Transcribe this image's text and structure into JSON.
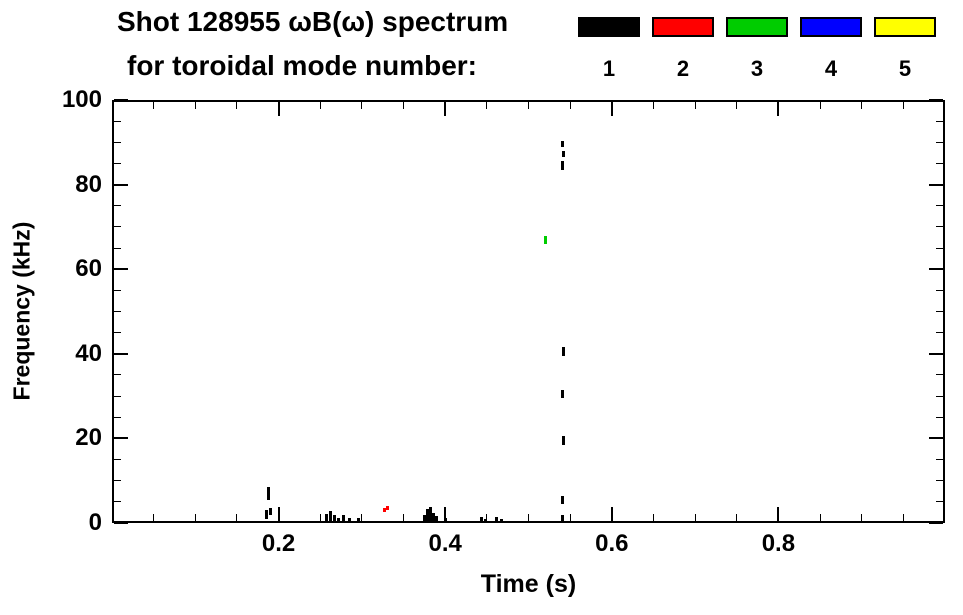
{
  "chart_data": {
    "type": "scatter",
    "title": "Shot 128955 ωB(ω) spectrum",
    "subtitle": "for toroidal mode number:",
    "xlabel": "Time (s)",
    "ylabel": "Frequency (kHz)",
    "xlim": [
      0.0,
      1.0
    ],
    "ylim": [
      0,
      100
    ],
    "xticks": [
      0.2,
      0.4,
      0.6,
      0.8
    ],
    "x_minor_step": 0.05,
    "x_tick_decimals": 1,
    "yticks": [
      0,
      20,
      40,
      60,
      80,
      100
    ],
    "y_minor_step": 5,
    "grid": false,
    "legend_position": "top-right",
    "legend": [
      {
        "label": "1",
        "color": "#000000"
      },
      {
        "label": "2",
        "color": "#ff0000"
      },
      {
        "label": "3",
        "color": "#00cc00"
      },
      {
        "label": "4",
        "color": "#0000ff"
      },
      {
        "label": "5",
        "color": "#ffff00"
      }
    ],
    "series": [
      {
        "mode": 1,
        "name": "n=1",
        "color": "#000000",
        "points": [
          [
            0.186,
            1.0,
            3.0
          ],
          [
            0.188,
            5.5,
            8.5
          ],
          [
            0.19,
            2.0,
            3.5
          ],
          [
            0.257,
            0.3,
            2.2
          ],
          [
            0.262,
            0.3,
            2.8
          ],
          [
            0.267,
            0.3,
            1.8
          ],
          [
            0.272,
            0.3,
            1.2
          ],
          [
            0.278,
            0.3,
            1.8
          ],
          [
            0.285,
            0.3,
            1.2
          ],
          [
            0.296,
            0.3,
            1.3
          ],
          [
            0.375,
            0.3,
            2.0
          ],
          [
            0.379,
            0.3,
            3.2
          ],
          [
            0.382,
            0.3,
            3.8
          ],
          [
            0.386,
            0.3,
            2.4
          ],
          [
            0.39,
            0.3,
            1.6
          ],
          [
            0.4,
            0.3,
            1.2
          ],
          [
            0.443,
            0.3,
            1.4
          ],
          [
            0.448,
            0.3,
            1.0
          ],
          [
            0.462,
            0.3,
            1.4
          ],
          [
            0.467,
            0.3,
            1.0
          ],
          [
            0.541,
            0.3,
            2.0
          ],
          [
            0.541,
            4.5,
            6.5
          ],
          [
            0.542,
            18.5,
            20.5
          ],
          [
            0.541,
            29.5,
            31.5
          ],
          [
            0.542,
            39.5,
            41.5
          ],
          [
            0.541,
            83.5,
            85.5
          ],
          [
            0.542,
            86.5,
            88.0
          ],
          [
            0.541,
            88.8,
            90.2
          ]
        ]
      },
      {
        "mode": 2,
        "name": "n=2",
        "color": "#ff0000",
        "points": [
          [
            0.327,
            2.6,
            3.6
          ],
          [
            0.331,
            3.0,
            4.0
          ]
        ]
      },
      {
        "mode": 3,
        "name": "n=3",
        "color": "#00cc00",
        "points": [
          [
            0.52,
            66.0,
            67.8
          ]
        ]
      },
      {
        "mode": 4,
        "name": "n=4",
        "color": "#0000ff",
        "points": []
      },
      {
        "mode": 5,
        "name": "n=5",
        "color": "#ffff00",
        "points": []
      }
    ]
  }
}
